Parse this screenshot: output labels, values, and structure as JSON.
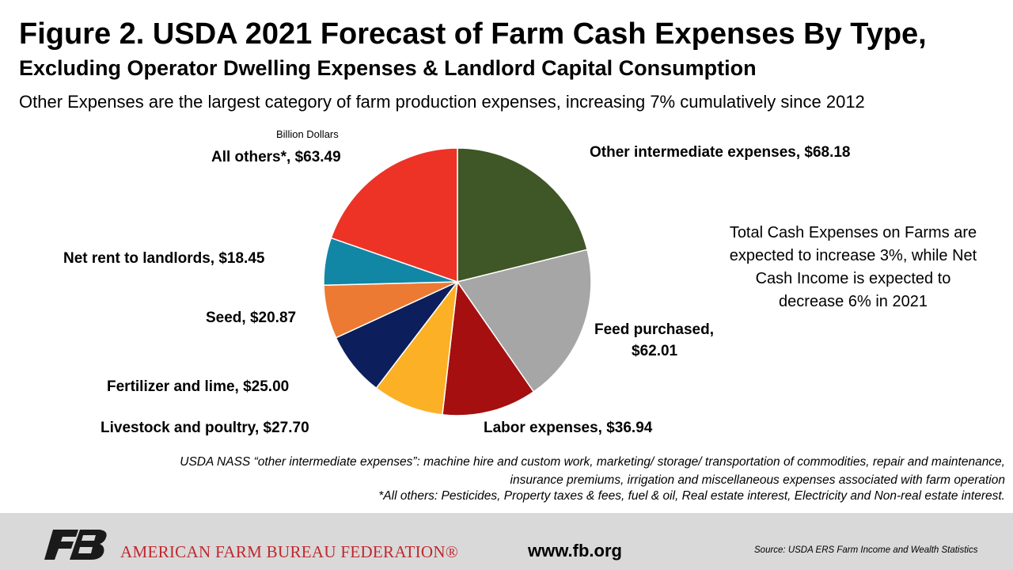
{
  "header": {
    "title": "Figure 2. USDA 2021 Forecast of Farm Cash Expenses By Type,",
    "subtitle": "Excluding Operator Dwelling Expenses & Landlord Capital Consumption",
    "tagline": "Other Expenses are the largest category of farm production expenses, increasing 7% cumulatively since 2012"
  },
  "chart_data": {
    "type": "pie",
    "units": "Billion Dollars",
    "slices": [
      {
        "label": "Other intermediate expenses, $68.18",
        "value": 68.18,
        "color": "#3f5626"
      },
      {
        "label": "Feed purchased,",
        "label2": "$62.01",
        "value": 62.01,
        "color": "#a6a6a6"
      },
      {
        "label": "Labor expenses, $36.94",
        "value": 36.94,
        "color": "#a50f0f"
      },
      {
        "label": "Livestock and poultry, $27.70",
        "value": 27.7,
        "color": "#fbb026"
      },
      {
        "label": "Fertilizer and lime, $25.00",
        "value": 25.0,
        "color": "#0c1f5c"
      },
      {
        "label": "Seed, $20.87",
        "value": 20.87,
        "color": "#ec7a32"
      },
      {
        "label": "Net rent to landlords, $18.45",
        "value": 18.45,
        "color": "#1186a5"
      },
      {
        "label": "All others*, $63.49",
        "value": 63.49,
        "color": "#ec3326"
      }
    ]
  },
  "note": {
    "line1": "Total Cash Expenses on Farms are",
    "line2": "expected to increase 3%, while Net",
    "line3": "Cash Income is expected to",
    "line4": "decrease 6% in 2021"
  },
  "footnotes": {
    "line1": "USDA NASS “other intermediate expenses”: machine hire and custom work, marketing/ storage/ transportation of commodities, repair and maintenance,",
    "line2": "insurance premiums, irrigation and miscellaneous expenses associated with farm operation",
    "line3": "*All others: Pesticides, Property taxes & fees, fuel & oil, Real estate interest, Electricity and Non-real estate interest."
  },
  "footer": {
    "org": "AMERICAN FARM BUREAU FEDERATION®",
    "url": "www.fb.org",
    "source": "Source:  USDA  ERS Farm Income and Wealth Statistics"
  }
}
